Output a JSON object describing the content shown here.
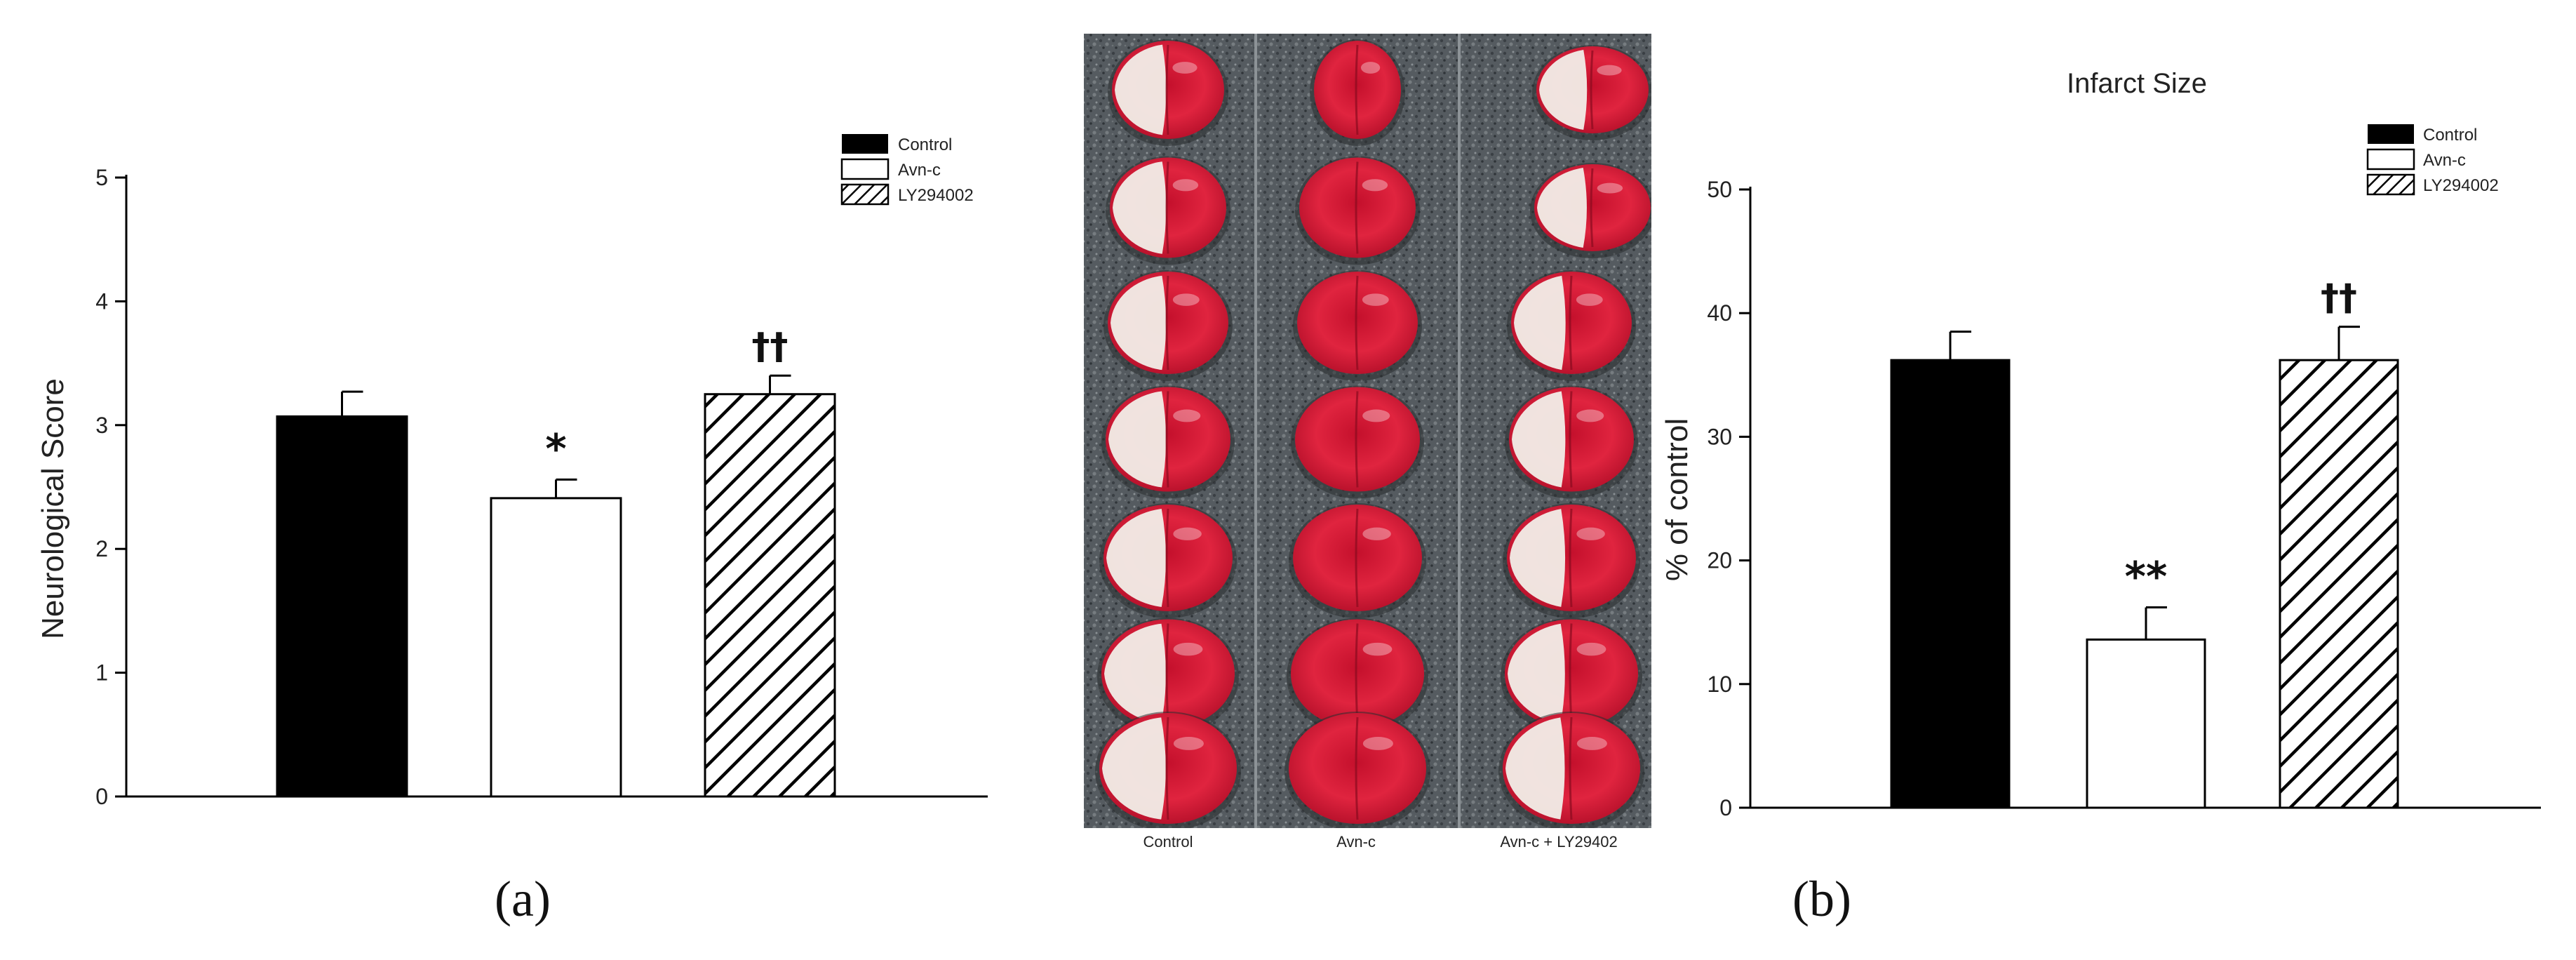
{
  "colors": {
    "control": "#000000",
    "avn_c": "#ffffff",
    "ly294002_stroke": "#000000",
    "photo_bg": "#555b60",
    "tissue_red": "#d41a35",
    "tissue_pale": "#f1eee8"
  },
  "panel_labels": {
    "a": "(a)",
    "b": "(b)"
  },
  "chart_data": [
    {
      "type": "bar",
      "title": "",
      "xlabel": "",
      "ylabel": "Neurological Score",
      "ylim": [
        0,
        5
      ],
      "yticks": [
        0,
        1,
        2,
        3,
        4,
        5
      ],
      "categories": [
        "Control",
        "Avn-c",
        "LY294002"
      ],
      "values": [
        3.07,
        2.41,
        3.25
      ],
      "errors": [
        0.2,
        0.15,
        0.15
      ],
      "significance": [
        "",
        "*",
        "††"
      ],
      "legend": [
        "Control",
        "Avn-c",
        "LY294002"
      ],
      "legend_position": "top-right",
      "grid": false
    },
    {
      "type": "bar",
      "title": "Infarct Size",
      "xlabel": "",
      "ylabel": "% of control",
      "ylim": [
        0,
        50
      ],
      "yticks": [
        0,
        10,
        20,
        30,
        40,
        50
      ],
      "categories": [
        "Control",
        "Avn-c",
        "LY294002"
      ],
      "values": [
        36.2,
        13.6,
        36.2
      ],
      "errors": [
        2.3,
        2.6,
        2.7
      ],
      "significance": [
        "",
        "**",
        "††"
      ],
      "legend": [
        "Control",
        "Avn-c",
        "LY294002"
      ],
      "legend_position": "top-right",
      "grid": false
    }
  ],
  "photo": {
    "columns": [
      {
        "label": "Control"
      },
      {
        "label": "Avn-c"
      },
      {
        "label": "Avn-c + LY29402"
      }
    ]
  }
}
